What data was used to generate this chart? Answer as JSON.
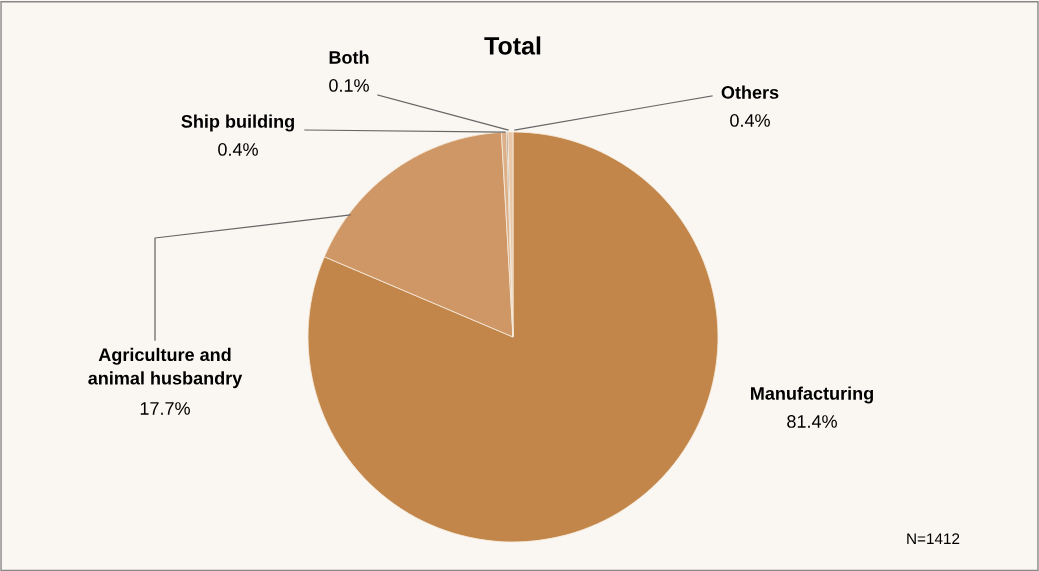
{
  "chart_data": {
    "type": "pie",
    "title": "Total",
    "categories": [
      "Manufacturing",
      "Agriculture and\nanimal husbandry",
      "Ship building",
      "Both",
      "Others"
    ],
    "values": [
      81.4,
      17.7,
      0.4,
      0.1,
      0.4
    ],
    "colors": [
      "#c3864a",
      "#cf9766",
      "#dcb088",
      "#5a4a3a",
      "#e8c8a8"
    ],
    "value_labels": [
      "81.4%",
      "17.7%",
      "0.4%",
      "0.1%",
      "0.4%"
    ],
    "annotations": [
      "N=1412"
    ]
  }
}
